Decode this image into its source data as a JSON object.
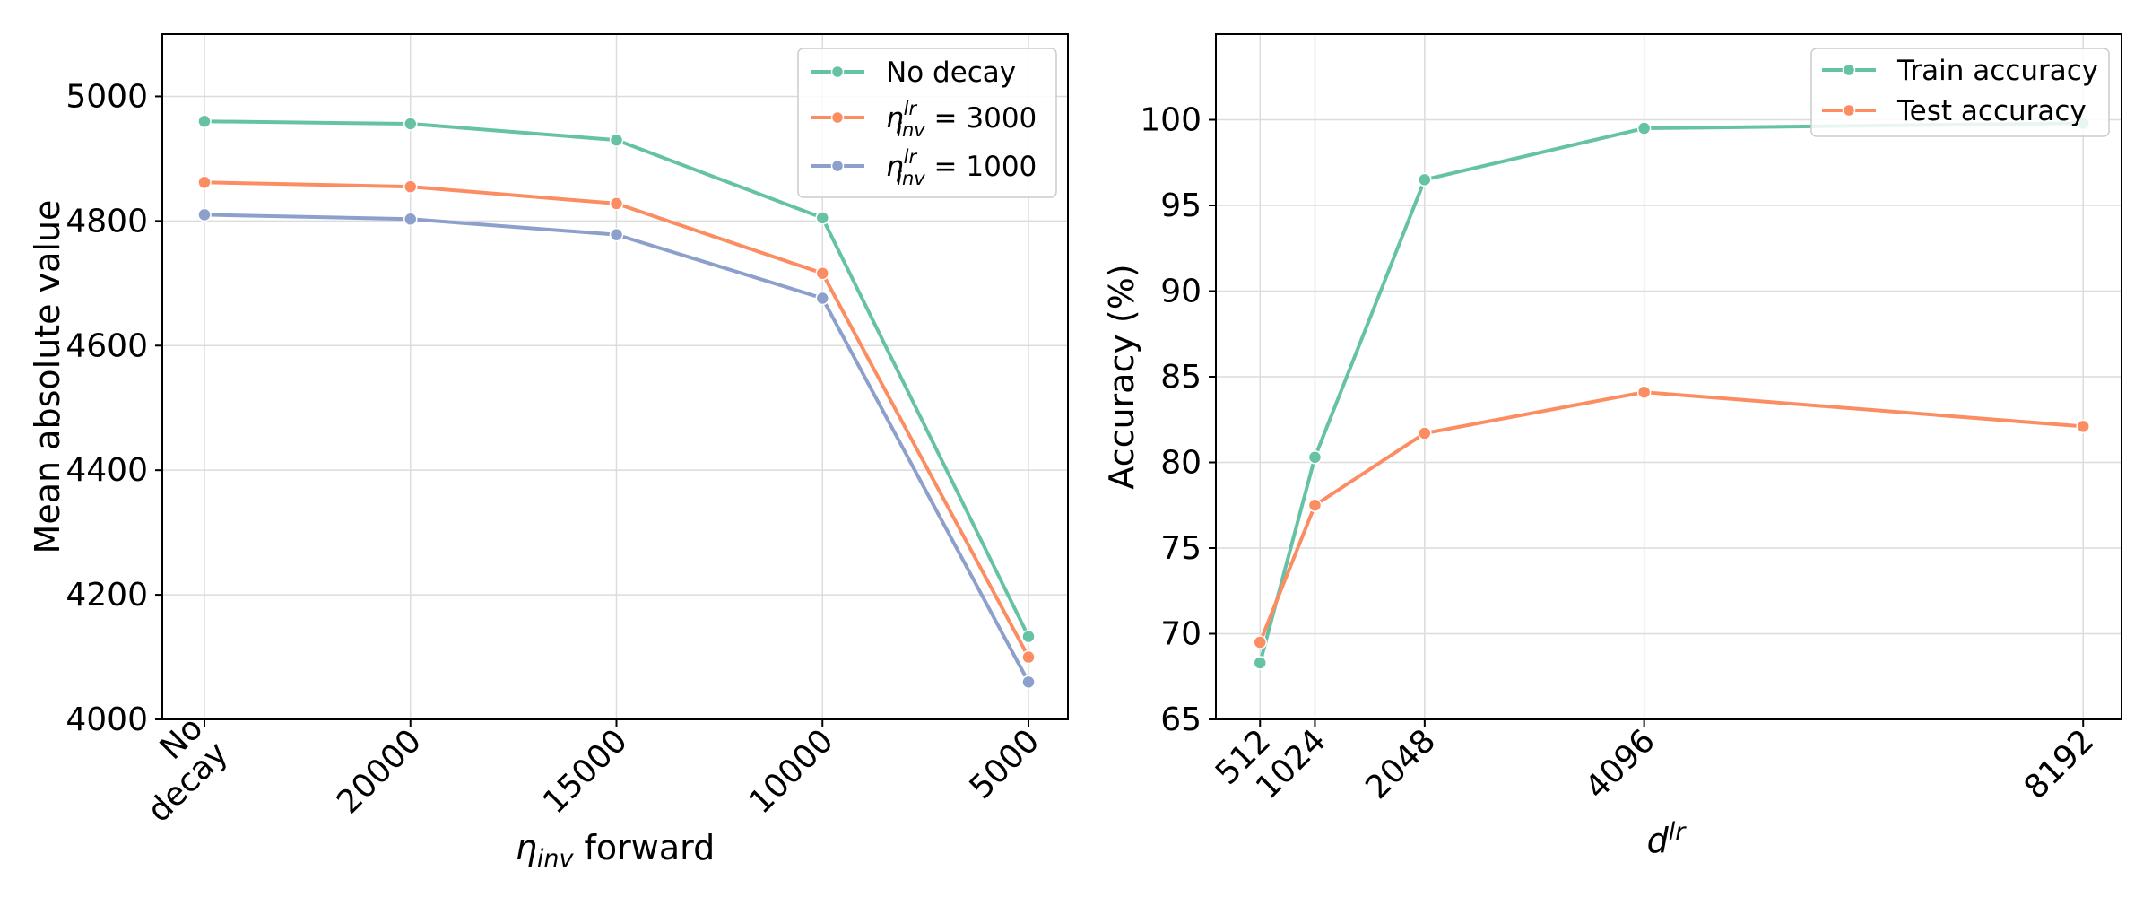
{
  "colors": {
    "green": "#66c2a5",
    "orange": "#fc8d62",
    "blue": "#8da0cb"
  },
  "chart_data": [
    {
      "type": "line",
      "categories": [
        "No decay",
        "20000",
        "15000",
        "10000",
        "5000"
      ],
      "xlabel_symbol": "η",
      "xlabel_sub": "inv",
      "xlabel_rest": " forward",
      "ylabel": "Mean absolute value",
      "ylim": [
        4000,
        5100
      ],
      "yticks": [
        4000,
        4200,
        4400,
        4600,
        4800,
        5000
      ],
      "grid": true,
      "legend_position": "top-right",
      "series": [
        {
          "name": "No decay",
          "values": [
            4960,
            4956,
            4930,
            4805,
            4133
          ],
          "color": "#66c2a5"
        },
        {
          "name": "η inv lr = 3000",
          "eta": "η",
          "sup": "lr",
          "sub": "inv",
          "rest": " = 3000",
          "values": [
            4862,
            4855,
            4828,
            4716,
            4100
          ],
          "color": "#fc8d62"
        },
        {
          "name": "η inv lr = 1000",
          "eta": "η",
          "sup": "lr",
          "sub": "inv",
          "rest": " = 1000",
          "values": [
            4810,
            4803,
            4778,
            4676,
            4060
          ],
          "color": "#8da0cb"
        }
      ]
    },
    {
      "type": "line",
      "x": [
        512,
        1024,
        2048,
        4096,
        8192
      ],
      "xticklabels": [
        "512",
        "1024",
        "2048",
        "4096",
        "8192"
      ],
      "xlabel_symbol": "d",
      "xlabel_sup": "lr",
      "ylabel": "Accuracy (%)",
      "xlim": [
        100,
        8550
      ],
      "ylim": [
        65,
        105
      ],
      "yticks": [
        65,
        70,
        75,
        80,
        85,
        90,
        95,
        100
      ],
      "grid": true,
      "legend_position": "top-right",
      "series": [
        {
          "name": "Train accuracy",
          "values": [
            68.3,
            80.3,
            96.5,
            99.5,
            99.8
          ],
          "color": "#66c2a5"
        },
        {
          "name": "Test accuracy",
          "values": [
            69.5,
            77.5,
            81.7,
            84.1,
            82.1
          ],
          "color": "#fc8d62"
        }
      ]
    }
  ]
}
